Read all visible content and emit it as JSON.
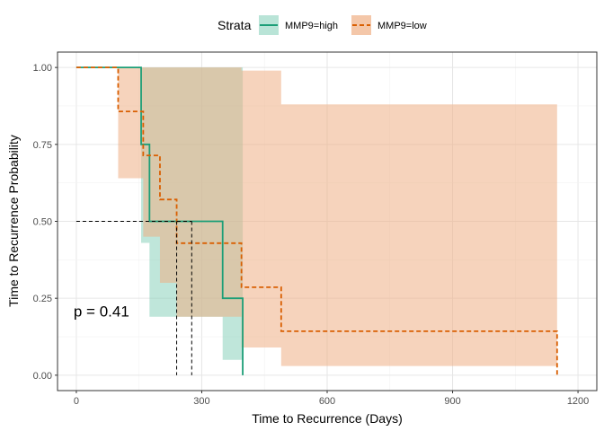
{
  "chart_data": {
    "type": "line",
    "subtype": "kaplan-meier step",
    "title": "",
    "xlabel": "Time to Recurrence (Days)",
    "ylabel": "Time to Recurrence Probability",
    "xlim": [
      -45,
      1245
    ],
    "ylim": [
      -0.05,
      1.05
    ],
    "xticks": [
      0,
      300,
      600,
      900,
      1200
    ],
    "yticks": [
      0.0,
      0.25,
      0.5,
      0.75,
      1.0
    ],
    "xtick_labels": [
      "0",
      "300",
      "600",
      "900",
      "1200"
    ],
    "ytick_labels": [
      "0.00",
      "0.25",
      "0.50",
      "0.75",
      "1.00"
    ],
    "grid": true,
    "legend": {
      "title": "Strata",
      "placement": "top",
      "entries": [
        "MMP9=high",
        "MMP9=low"
      ]
    },
    "annotation": "p = 0.41",
    "annotation_pos": [
      60,
      0.19
    ],
    "median_reference": {
      "y": 0.5,
      "x_values": [
        240,
        276
      ],
      "style": "dashed"
    },
    "series": [
      {
        "name": "MMP9=high",
        "color": "#1B9E77",
        "line_style": "solid",
        "band_color": "#7FCDB6",
        "x": [
          0,
          155,
          175,
          350,
          398
        ],
        "y": [
          1.0,
          0.75,
          0.5,
          0.25,
          0.0
        ],
        "lower": [
          1.0,
          0.43,
          0.19,
          0.05,
          0.0
        ],
        "upper": [
          1.0,
          1.0,
          1.0,
          1.0,
          1.0
        ],
        "end_x": 398
      },
      {
        "name": "MMP9=low",
        "color": "#D95F02",
        "line_style": "dashed",
        "band_color": "#EFAF85",
        "x": [
          0,
          100,
          160,
          200,
          240,
          395,
          490
        ],
        "y": [
          1.0,
          0.857,
          0.714,
          0.571,
          0.429,
          0.286,
          0.143
        ],
        "lower": [
          1.0,
          0.64,
          0.45,
          0.3,
          0.19,
          0.09,
          0.03
        ],
        "upper": [
          1.0,
          1.0,
          1.0,
          1.0,
          1.0,
          0.99,
          0.88
        ],
        "end_x": 1150,
        "end_y": 0.0
      }
    ]
  }
}
